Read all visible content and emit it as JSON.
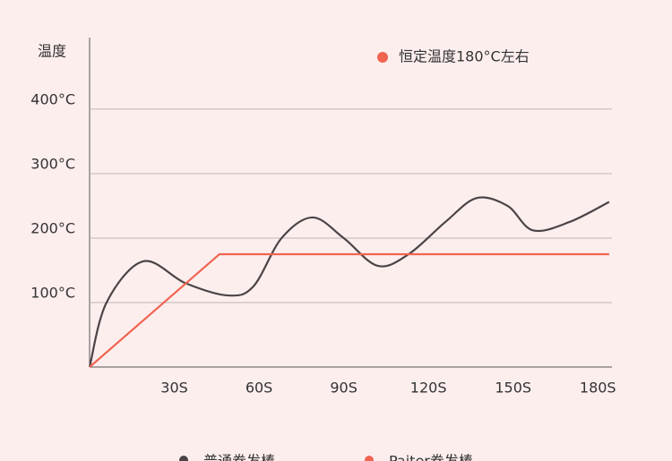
{
  "chart_data": {
    "type": "line",
    "y_label": "温度",
    "annotation": "恒定温度180°C左右",
    "annotation_color": "#f06450",
    "xlim": [
      0,
      185
    ],
    "ylim": [
      0,
      511
    ],
    "xticks": [
      {
        "value": 30,
        "label": "30S"
      },
      {
        "value": 60,
        "label": "60S"
      },
      {
        "value": 90,
        "label": "90S"
      },
      {
        "value": 120,
        "label": "120S"
      },
      {
        "value": 150,
        "label": "150S"
      },
      {
        "value": 180,
        "label": "180S"
      }
    ],
    "yticks": [
      {
        "value": 100,
        "label": "100°C"
      },
      {
        "value": 200,
        "label": "200°C"
      },
      {
        "value": 300,
        "label": "300°C"
      },
      {
        "value": 400,
        "label": "400°C"
      }
    ],
    "grid": true,
    "series": [
      {
        "name": "普通卷发棒",
        "color": "#4a4446",
        "smooth": true,
        "x": [
          0,
          6,
          19,
          34,
          49,
          58,
          68,
          79,
          90,
          102,
          113,
          126,
          137,
          148,
          157,
          170,
          184
        ],
        "values": [
          0,
          100,
          164,
          130,
          111,
          125,
          200,
          232,
          200,
          157,
          175,
          225,
          262,
          250,
          212,
          225,
          256
        ]
      },
      {
        "name": "Paiter卷发棒",
        "color": "#f06450",
        "smooth": false,
        "x": [
          0,
          46,
          184
        ],
        "values": [
          0,
          175,
          175
        ]
      }
    ]
  }
}
